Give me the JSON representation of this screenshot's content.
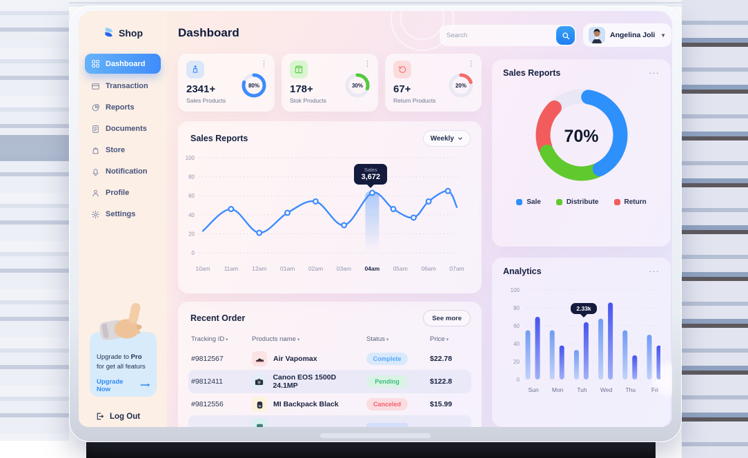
{
  "brand": {
    "name": "Shop"
  },
  "header": {
    "title": "Dashboard",
    "search_placeholder": "Search",
    "user_name": "Angelina Joli"
  },
  "sidebar": {
    "nav": [
      {
        "label": "Dashboard",
        "icon": "grid-icon",
        "active": true
      },
      {
        "label": "Transaction",
        "icon": "card-icon",
        "active": false
      },
      {
        "label": "Reports",
        "icon": "pie-icon",
        "active": false
      },
      {
        "label": "Documents",
        "icon": "doc-icon",
        "active": false
      },
      {
        "label": "Store",
        "icon": "bag-icon",
        "active": false
      },
      {
        "label": "Notification",
        "icon": "bell-icon",
        "active": false
      },
      {
        "label": "Profile",
        "icon": "user-icon",
        "active": false
      },
      {
        "label": "Settings",
        "icon": "gear-icon",
        "active": false
      }
    ],
    "upgrade": {
      "pre": "Upgrade to ",
      "bold": "Pro",
      "post": " for get all featurs",
      "cta": "Upgrade Now",
      "arrow": "⟶"
    },
    "logout": "Log Out"
  },
  "stats": [
    {
      "value": "2341+",
      "label": "Sales Products",
      "percent_label": "80%",
      "percent": 80,
      "accent": "#3d8bfd",
      "chip_bg": "#dbe7f9",
      "icon": "bag-up-icon"
    },
    {
      "value": "178+",
      "label": "Stok Products",
      "percent_label": "30%",
      "percent": 30,
      "accent": "#53ca3c",
      "chip_bg": "#d9f5d0",
      "icon": "box-icon"
    },
    {
      "value": "67+",
      "label": "Return Products",
      "percent_label": "20%",
      "percent": 20,
      "accent": "#f46b6b",
      "chip_bg": "#fbdcdc",
      "icon": "return-icon"
    }
  ],
  "recent": {
    "title": "Recent Order",
    "see_more": "See more",
    "columns": [
      "Tracking ID",
      "Products name",
      "Status",
      "Price"
    ],
    "rows": [
      {
        "id": "#9812567",
        "product": "Air Vapomax",
        "status": "Complete",
        "price": "$22.78",
        "icon": "sneaker-icon",
        "icon_bg": "#fbe3e3",
        "status_fg": "#59a8f7",
        "status_bg": "#d9e9fc",
        "shaded": false
      },
      {
        "id": "#9812411",
        "product": "Canon EOS 1500D 24.1MP",
        "status": "Pending",
        "price": "$122.8",
        "icon": "camera-icon",
        "icon_bg": "#e3edfa",
        "status_fg": "#41bd7d",
        "status_bg": "#d9f3e5",
        "shaded": true
      },
      {
        "id": "#9812556",
        "product": "MI Backpack Black",
        "status": "Canceled",
        "price": "$15.99",
        "icon": "backpack-icon",
        "icon_bg": "#fdf3dc",
        "status_fg": "#f4606c",
        "status_bg": "#fbdce1",
        "shaded": false
      },
      {
        "id": "",
        "product": "",
        "status": "",
        "price": "",
        "icon": "box-teal-icon",
        "icon_bg": "#d8f0ee",
        "status_fg": "#59a8f7",
        "status_bg": "#d3defa",
        "shaded": true
      }
    ]
  },
  "chart_data": [
    {
      "type": "line",
      "title": "Sales Reports",
      "range_selector": "Weekly",
      "x_labels": [
        "10am",
        "11am",
        "12am",
        "01am",
        "02am",
        "03am",
        "04am",
        "05am",
        "06am",
        "07am"
      ],
      "ylim": [
        0,
        100
      ],
      "y_ticks": [
        0,
        20,
        40,
        60,
        80,
        100
      ],
      "points": [
        {
          "fx": 0.0,
          "v": 23
        },
        {
          "fx": 0.111,
          "v": 46
        },
        {
          "fx": 0.222,
          "v": 21
        },
        {
          "fx": 0.333,
          "v": 42
        },
        {
          "fx": 0.444,
          "v": 54
        },
        {
          "fx": 0.556,
          "v": 29
        },
        {
          "fx": 0.667,
          "v": 63
        },
        {
          "fx": 0.75,
          "v": 46
        },
        {
          "fx": 0.83,
          "v": 37
        },
        {
          "fx": 0.889,
          "v": 54
        },
        {
          "fx": 0.965,
          "v": 65
        },
        {
          "fx": 1.0,
          "v": 48
        }
      ],
      "highlight_point": 6,
      "highlight_x_label": "04am",
      "tooltip": {
        "label": "Sales",
        "value": "3,672"
      },
      "line_color": "#3d8bfd"
    },
    {
      "type": "donut",
      "title": "Sales Reports",
      "center_label": "70%",
      "track_color": "#e9e7f6",
      "segments": [
        {
          "name": "Sale",
          "color": "#2e90fa",
          "start": -80,
          "end": 62
        },
        {
          "name": "Distribute",
          "color": "#5fc92e",
          "start": 68,
          "end": 154
        },
        {
          "name": "Return",
          "color": "#f25c5c",
          "start": 161,
          "end": 225
        }
      ]
    },
    {
      "type": "bar",
      "title": "Analytics",
      "categories": [
        "Sun",
        "Mon",
        "Tuh",
        "Wed",
        "Thu",
        "Fri"
      ],
      "series": [
        {
          "name": "series-a",
          "values": [
            55,
            55,
            33,
            68,
            55,
            50
          ]
        },
        {
          "name": "series-b",
          "values": [
            70,
            38,
            64,
            86,
            27,
            38
          ]
        }
      ],
      "ylim": [
        0,
        100
      ],
      "y_ticks": [
        0,
        20,
        40,
        60,
        80,
        100
      ],
      "tooltip": {
        "value": "2.33k",
        "category_index": 2,
        "series_index": 1
      }
    }
  ]
}
